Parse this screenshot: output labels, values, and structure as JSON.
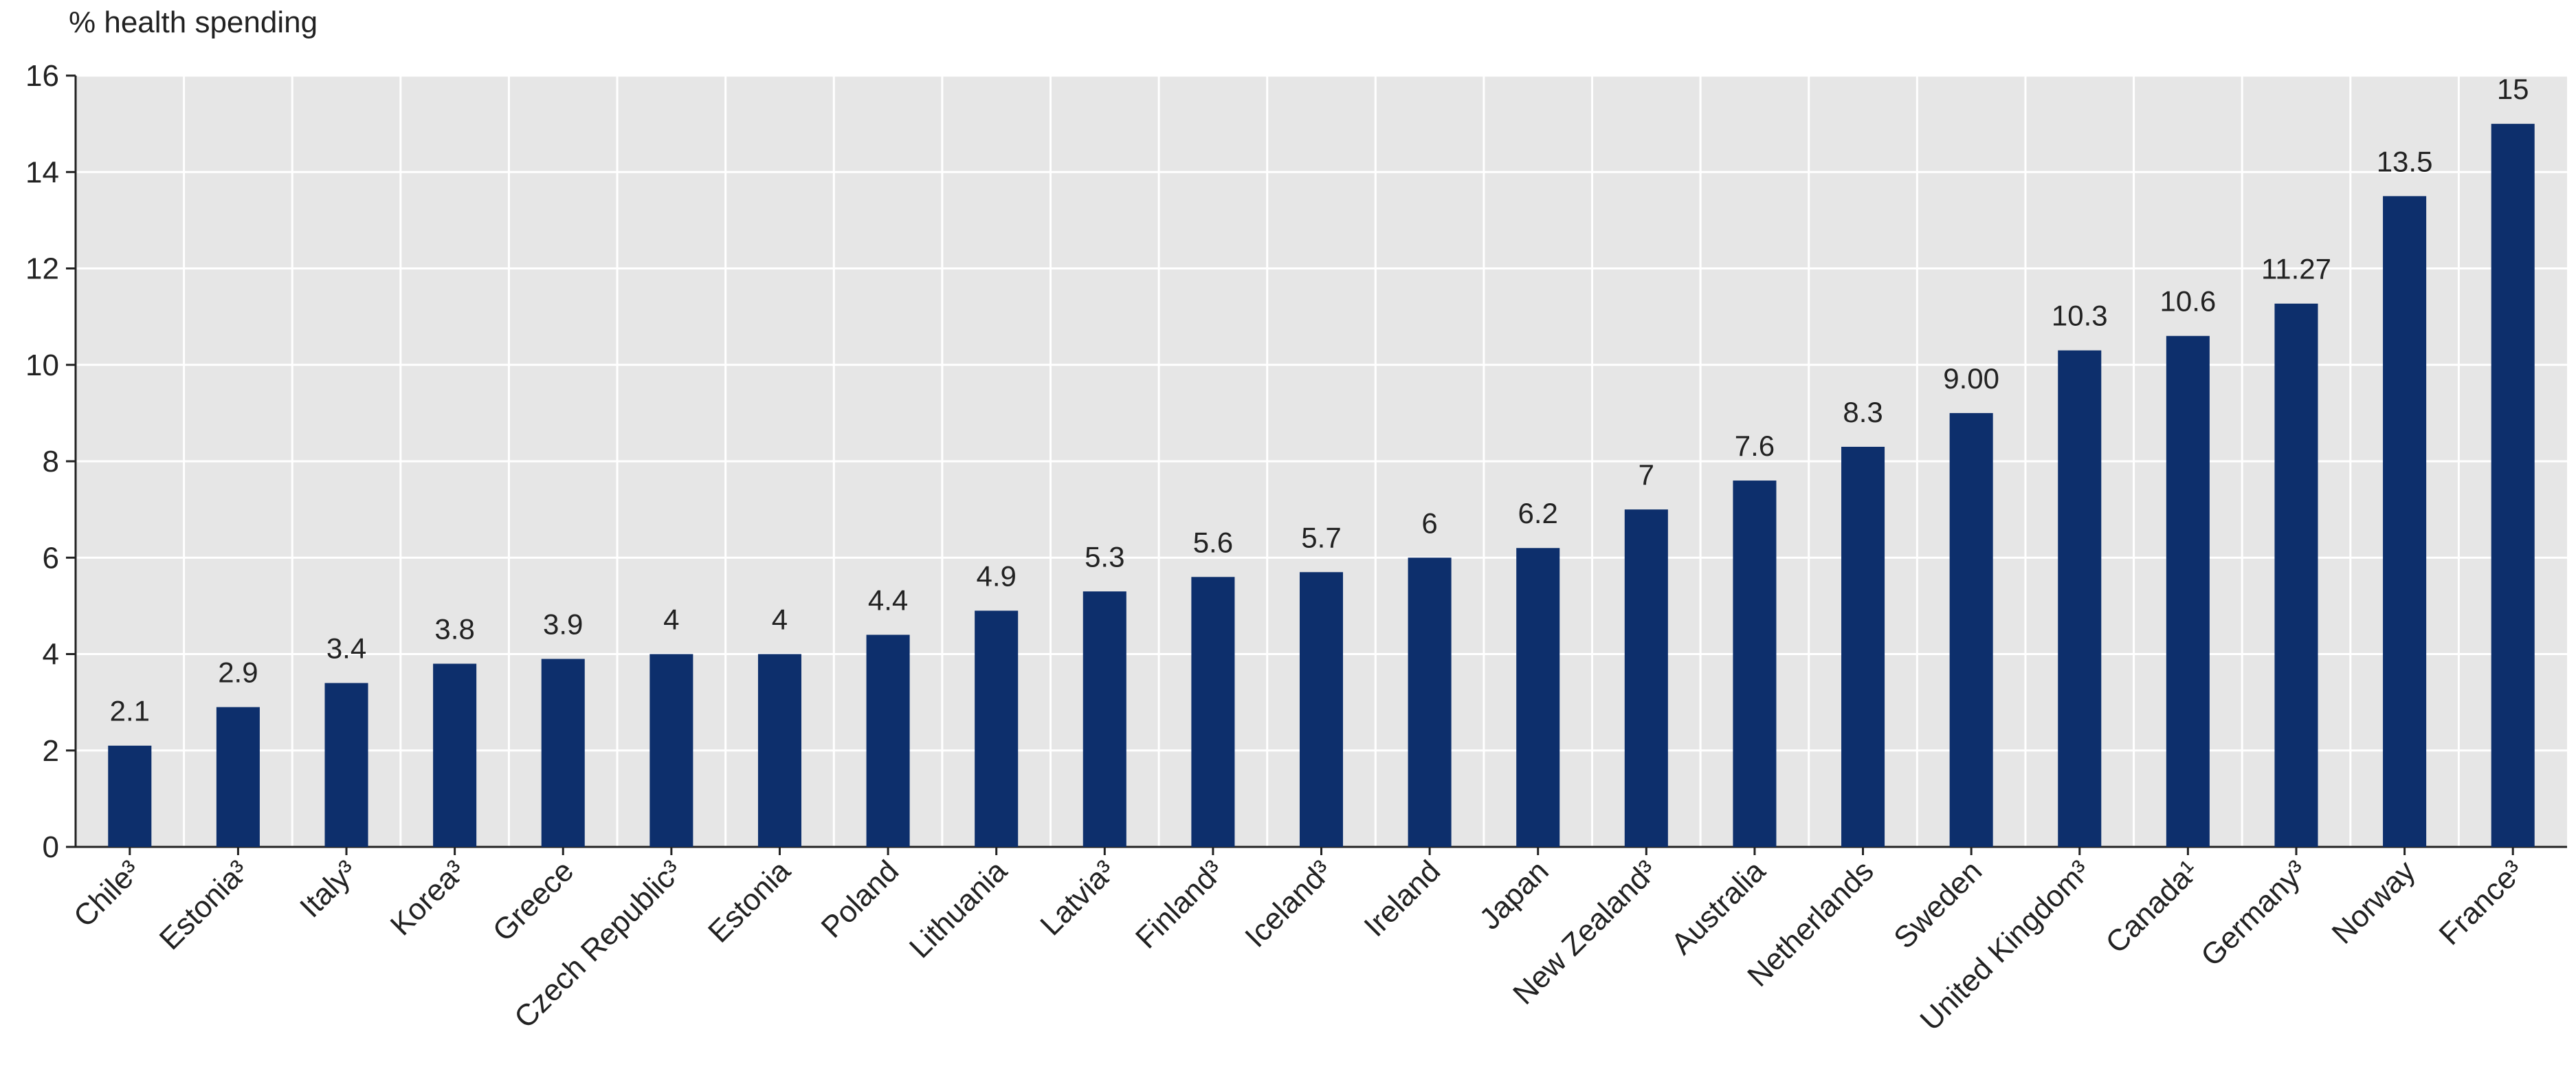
{
  "chart_data": {
    "type": "bar",
    "ylabel": "% health spending",
    "ylim": [
      0,
      16
    ],
    "yticks": [
      0,
      2,
      4,
      6,
      8,
      10,
      12,
      14,
      16
    ],
    "grid": true,
    "categories": [
      "Chile³",
      "Estonia³",
      "Italy³",
      "Korea³",
      "Greece",
      "Czech Republic³",
      "Estonia",
      "Poland",
      "Lithuania",
      "Latvia³",
      "Finland³",
      "Iceland³",
      "Ireland",
      "Japan",
      "New Zealand³",
      "Australia",
      "Netherlands",
      "Sweden",
      "United Kingdom³",
      "Canada¹",
      "Germany³",
      "Norway",
      "France³"
    ],
    "values": [
      2.1,
      2.9,
      3.4,
      3.8,
      3.9,
      4,
      4,
      4.4,
      4.9,
      5.3,
      5.6,
      5.7,
      6,
      6.2,
      7,
      7.6,
      8.3,
      9.0,
      10.3,
      10.6,
      11.27,
      13.5,
      15
    ],
    "value_labels": [
      "2.1",
      "2.9",
      "3.4",
      "3.8",
      "3.9",
      "4",
      "4",
      "4.4",
      "4.9",
      "5.3",
      "5.6",
      "5.7",
      "6",
      "6.2",
      "7",
      "7.6",
      "8.3",
      "9.00",
      "10.3",
      "10.6",
      "11.27",
      "13.5",
      "15"
    ],
    "colors": {
      "bar": "#0d2f6c",
      "plot_background": "#e6e6e6",
      "grid": "#ffffff",
      "axis": "#222222"
    }
  }
}
